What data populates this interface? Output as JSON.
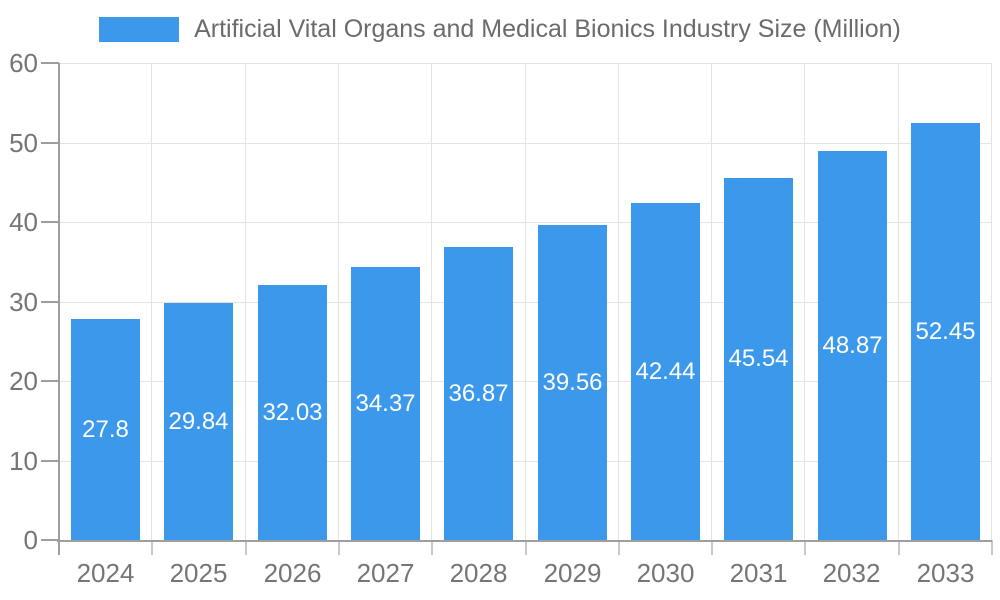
{
  "chart_data": {
    "type": "bar",
    "title": "Artificial Vital Organs and Medical Bionics Industry Size (Million)",
    "categories": [
      "2024",
      "2025",
      "2026",
      "2027",
      "2028",
      "2029",
      "2030",
      "2031",
      "2032",
      "2033"
    ],
    "values": [
      27.8,
      29.84,
      32.03,
      34.37,
      36.87,
      39.56,
      42.44,
      45.54,
      48.87,
      52.45
    ],
    "value_labels": [
      "27.8",
      "29.84",
      "32.03",
      "34.37",
      "36.87",
      "39.56",
      "42.44",
      "45.54",
      "48.87",
      "52.45"
    ],
    "xlabel": "",
    "ylabel": "",
    "ylim": [
      0,
      60
    ],
    "ytick_step": 10,
    "ytick_labels": [
      "0",
      "10",
      "20",
      "30",
      "40",
      "50",
      "60"
    ],
    "grid": true,
    "legend_position": "top",
    "colors": {
      "bar": "#3b98eb",
      "grid": "#e3e3e3",
      "axis": "#9e9e9e",
      "tick_x": "#c9c9c9",
      "axis_label": "#757575",
      "title": "#6b6b6b",
      "value_label": "#ffffff",
      "background": "#ffffff"
    }
  }
}
